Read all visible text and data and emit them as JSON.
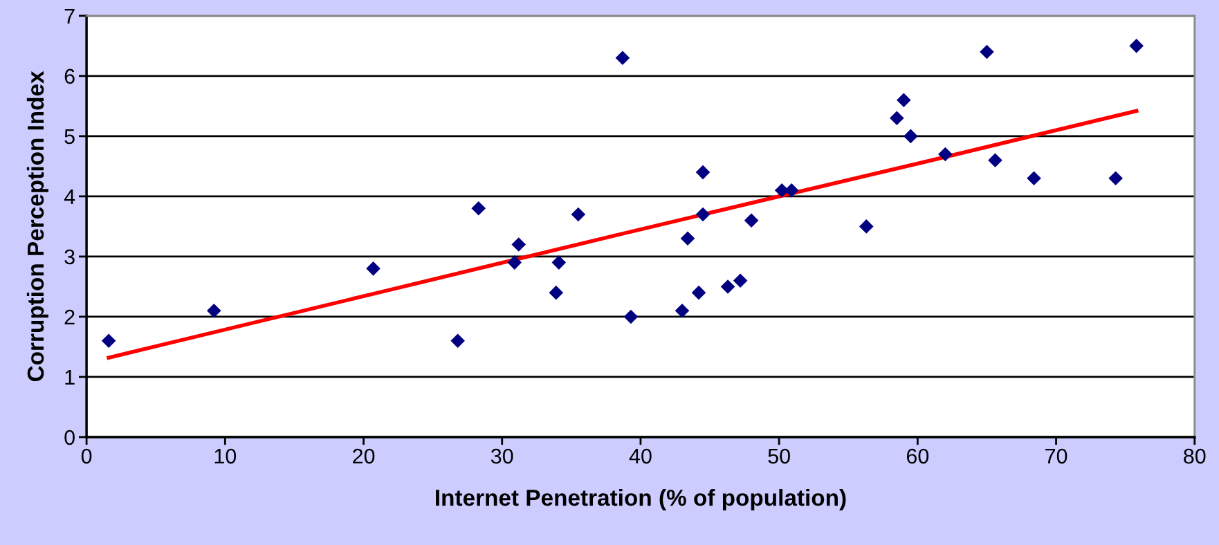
{
  "chart_data": {
    "type": "scatter",
    "xlabel": "Internet Penetration (% of population)",
    "ylabel": "Corruption Perception Index",
    "xlim": [
      0,
      80
    ],
    "xticks": [
      0,
      10,
      20,
      30,
      40,
      50,
      60,
      70,
      80
    ],
    "ylim": [
      0,
      7
    ],
    "yticks": [
      0,
      1,
      2,
      3,
      4,
      5,
      6,
      7
    ],
    "grid": "y",
    "legend": false,
    "series": [
      {
        "marker": "diamond",
        "color": "#000080",
        "x": [
          1.6,
          9.2,
          20.7,
          26.8,
          28.3,
          31.2,
          30.9,
          34.1,
          33.9,
          35.5,
          38.7,
          39.3,
          43.0,
          43.4,
          44.2,
          44.5,
          44.5,
          46.3,
          47.2,
          48.0,
          50.2,
          50.9,
          56.3,
          58.5,
          59.0,
          59.5,
          62.0,
          65.0,
          65.6,
          68.4,
          74.3,
          75.8
        ],
        "values": [
          1.6,
          2.1,
          2.8,
          1.6,
          3.8,
          3.2,
          2.9,
          2.9,
          2.4,
          3.7,
          6.3,
          2.0,
          2.1,
          3.3,
          2.4,
          4.4,
          3.7,
          2.5,
          2.6,
          3.6,
          4.1,
          4.1,
          3.5,
          5.3,
          5.6,
          5.0,
          4.7,
          6.4,
          4.6,
          4.3,
          4.3,
          6.5
        ]
      },
      {
        "type": "line",
        "marker": "none",
        "line_style": "solid",
        "color": "#ff0000",
        "x": [
          1.6,
          20.7,
          38.7,
          50.2,
          61.0,
          75.8
        ],
        "values": [
          1.32,
          2.38,
          3.38,
          4.01,
          4.6,
          5.42
        ]
      }
    ]
  }
}
